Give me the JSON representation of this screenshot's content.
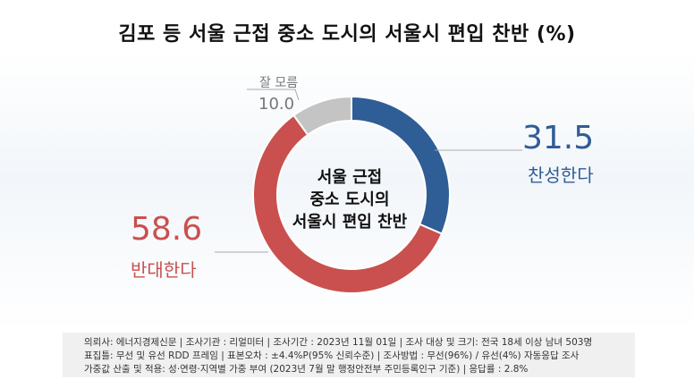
{
  "title": "김포 등 서울 근접 중소 도시의 서울시 편입 찬반 (%)",
  "center": [
    "서울 근접",
    "중소 도시의",
    "서울시 편입 찬반"
  ],
  "chart_data": {
    "type": "pie",
    "title": "김포 등 서울 근접 중소 도시의 서울시 편입 찬반 (%)",
    "slices": [
      {
        "label": "찬성한다",
        "value": 31.5,
        "display": "31.5",
        "color": "#2f5d96"
      },
      {
        "label": "반대한다",
        "value": 58.6,
        "display": "58.6",
        "color": "#c9504e"
      },
      {
        "label": "잘 모름",
        "value": 10.0,
        "display": "10.0",
        "color": "#c4c4c4"
      }
    ]
  },
  "footer": [
    "의뢰사: 에너지경제신문 | 조사기관 : 리얼미터  | 조사기간 : 2023년 11월 01일 | 조사 대상 및 크기: 전국 18세 이상 남녀 503명",
    "표집틀: 무선 및 유선 RDD 프레임 | 표본오차 : ±4.4%P(95% 신뢰수준) | 조사방법 : 무선(96%) / 유선(4%) 자동응답 조사",
    "가중값 산출 및 적용: 성·연령·지역별 가중 부여 (2023년 7월 말 행정안전부 주민등록인구  기준) | 응답률 : 2.8%"
  ]
}
